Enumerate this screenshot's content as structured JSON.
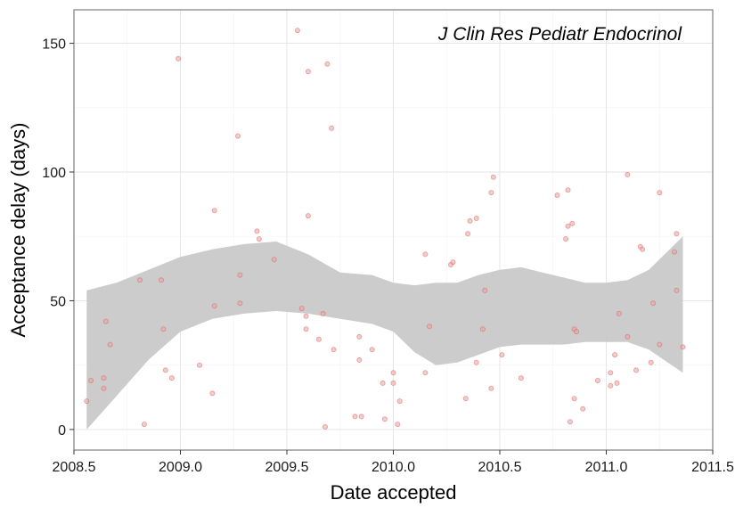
{
  "chart_data": {
    "type": "scatter",
    "title": "J Clin Res Pediatr Endocrinol",
    "xlabel": "Date accepted",
    "ylabel": "Acceptance delay (days)",
    "xlim": [
      2008.5,
      2011.5
    ],
    "ylim": [
      -8,
      163
    ],
    "x_ticks": [
      2008.5,
      2009.0,
      2009.5,
      2010.0,
      2010.5,
      2011.0,
      2011.5
    ],
    "x_tick_labels": [
      "2008.5",
      "2009.0",
      "2009.5",
      "2010.0",
      "2010.5",
      "2011.0",
      "2011.5"
    ],
    "y_ticks": [
      0,
      50,
      100,
      150
    ],
    "y_tick_labels": [
      "0",
      "50",
      "100",
      "150"
    ],
    "grid": true,
    "point_color": "#e8a0a0",
    "point_stroke": "#d9534f",
    "band_color": "#c9c9c9",
    "points": [
      [
        2008.56,
        11
      ],
      [
        2008.58,
        19
      ],
      [
        2008.64,
        20
      ],
      [
        2008.64,
        16
      ],
      [
        2008.65,
        42
      ],
      [
        2008.67,
        33
      ],
      [
        2008.81,
        58
      ],
      [
        2008.83,
        2
      ],
      [
        2008.91,
        58
      ],
      [
        2008.92,
        39
      ],
      [
        2008.93,
        23
      ],
      [
        2008.96,
        20
      ],
      [
        2008.99,
        144
      ],
      [
        2009.09,
        25
      ],
      [
        2009.15,
        14
      ],
      [
        2009.16,
        48
      ],
      [
        2009.16,
        85
      ],
      [
        2009.27,
        114
      ],
      [
        2009.28,
        49
      ],
      [
        2009.28,
        60
      ],
      [
        2009.36,
        77
      ],
      [
        2009.37,
        74
      ],
      [
        2009.44,
        66
      ],
      [
        2009.55,
        155
      ],
      [
        2009.57,
        47
      ],
      [
        2009.59,
        44
      ],
      [
        2009.59,
        39
      ],
      [
        2009.6,
        83
      ],
      [
        2009.6,
        139
      ],
      [
        2009.65,
        35
      ],
      [
        2009.67,
        45
      ],
      [
        2009.68,
        1
      ],
      [
        2009.69,
        142
      ],
      [
        2009.71,
        117
      ],
      [
        2009.72,
        31
      ],
      [
        2009.82,
        5
      ],
      [
        2009.84,
        36
      ],
      [
        2009.84,
        27
      ],
      [
        2009.85,
        5
      ],
      [
        2009.9,
        31
      ],
      [
        2009.95,
        18
      ],
      [
        2009.96,
        4
      ],
      [
        2010.0,
        22
      ],
      [
        2010.0,
        18
      ],
      [
        2010.02,
        2
      ],
      [
        2010.03,
        11
      ],
      [
        2010.15,
        22
      ],
      [
        2010.15,
        68
      ],
      [
        2010.17,
        40
      ],
      [
        2010.27,
        64
      ],
      [
        2010.28,
        65
      ],
      [
        2010.34,
        12
      ],
      [
        2010.35,
        76
      ],
      [
        2010.36,
        81
      ],
      [
        2010.39,
        82
      ],
      [
        2010.39,
        26
      ],
      [
        2010.42,
        39
      ],
      [
        2010.43,
        54
      ],
      [
        2010.46,
        16
      ],
      [
        2010.46,
        92
      ],
      [
        2010.47,
        98
      ],
      [
        2010.51,
        29
      ],
      [
        2010.6,
        20
      ],
      [
        2010.77,
        91
      ],
      [
        2010.81,
        74
      ],
      [
        2010.82,
        79
      ],
      [
        2010.82,
        93
      ],
      [
        2010.83,
        3
      ],
      [
        2010.84,
        80
      ],
      [
        2010.85,
        12
      ],
      [
        2010.85,
        39
      ],
      [
        2010.86,
        38
      ],
      [
        2010.89,
        8
      ],
      [
        2010.96,
        19
      ],
      [
        2011.02,
        22
      ],
      [
        2011.02,
        17
      ],
      [
        2011.04,
        29
      ],
      [
        2011.05,
        18
      ],
      [
        2011.06,
        45
      ],
      [
        2011.1,
        36
      ],
      [
        2011.1,
        99
      ],
      [
        2011.14,
        23
      ],
      [
        2011.16,
        71
      ],
      [
        2011.17,
        70
      ],
      [
        2011.21,
        26
      ],
      [
        2011.22,
        49
      ],
      [
        2011.25,
        33
      ],
      [
        2011.25,
        92
      ],
      [
        2011.32,
        69
      ],
      [
        2011.33,
        76
      ],
      [
        2011.33,
        54
      ],
      [
        2011.36,
        32
      ]
    ],
    "smooth_band": {
      "x": [
        2008.56,
        2008.7,
        2008.85,
        2009.0,
        2009.15,
        2009.3,
        2009.45,
        2009.6,
        2009.75,
        2009.9,
        2010.0,
        2010.1,
        2010.2,
        2010.3,
        2010.4,
        2010.5,
        2010.6,
        2010.7,
        2010.8,
        2010.9,
        2011.0,
        2011.1,
        2011.2,
        2011.36
      ],
      "upper": [
        54,
        57,
        62,
        67,
        70,
        72,
        73,
        68,
        61,
        60,
        57,
        56,
        57,
        57,
        60,
        62,
        63,
        61,
        59,
        57,
        57,
        58,
        62,
        75
      ],
      "lower": [
        0,
        13,
        27,
        38,
        43,
        45,
        46,
        45,
        43,
        41,
        38,
        30,
        25,
        26,
        29,
        32,
        33,
        33,
        33,
        34,
        34,
        34,
        31,
        22
      ]
    }
  }
}
